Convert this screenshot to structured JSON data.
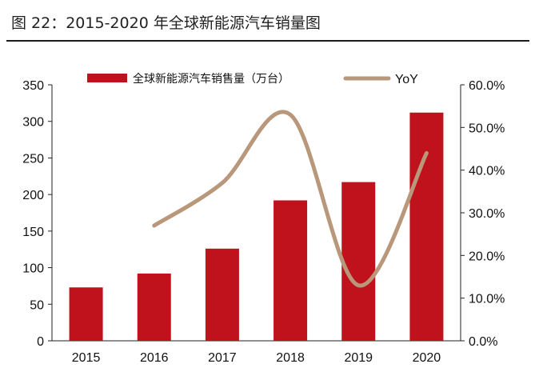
{
  "figure": {
    "title": "图 22：2015-2020 年全球新能源汽车销量图"
  },
  "colors": {
    "bar": "#c0121c",
    "line": "#b8977a",
    "axis": "#222222",
    "title_rule": "#1a1a1a"
  },
  "chart_data": {
    "type": "bar",
    "title": "",
    "categories": [
      "2015",
      "2016",
      "2017",
      "2018",
      "2019",
      "2020"
    ],
    "series": [
      {
        "name": "全球新能源汽车销售量（万台）",
        "type": "bar",
        "axis": "left",
        "values": [
          73,
          92,
          126,
          192,
          217,
          312
        ]
      },
      {
        "name": "YoY",
        "type": "line",
        "axis": "right",
        "smooth": true,
        "values": [
          null,
          0.27,
          0.37,
          0.53,
          0.13,
          0.44
        ]
      }
    ],
    "y_left": {
      "ylim": [
        0,
        350
      ],
      "ticks": [
        0,
        50,
        100,
        150,
        200,
        250,
        300,
        350
      ],
      "tick_labels": [
        "0",
        "50",
        "100",
        "150",
        "200",
        "250",
        "300",
        "350"
      ]
    },
    "y_right": {
      "ylim": [
        0,
        0.6
      ],
      "ticks": [
        0,
        0.1,
        0.2,
        0.3,
        0.4,
        0.5,
        0.6
      ],
      "tick_labels": [
        "0.0%",
        "10.0%",
        "20.0%",
        "30.0%",
        "40.0%",
        "50.0%",
        "60.0%"
      ]
    },
    "xlabel": "",
    "ylabel": "",
    "grid": false,
    "legend_position": "top"
  }
}
